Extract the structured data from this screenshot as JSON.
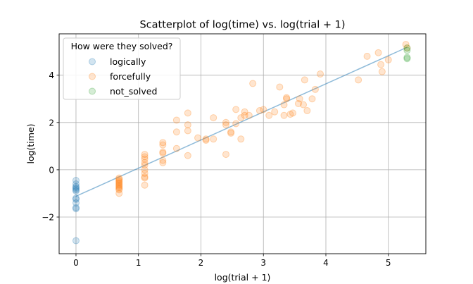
{
  "chart_data": {
    "type": "scatter",
    "title": "Scatterplot of log(time) vs. log(trial + 1)",
    "xlabel": "log(trial + 1)",
    "ylabel": "log(time)",
    "xlim": [
      -0.27,
      5.6
    ],
    "ylim": [
      -3.55,
      5.75
    ],
    "xticks": [
      0,
      1,
      2,
      3,
      4,
      5
    ],
    "yticks": [
      -2,
      0,
      2,
      4
    ],
    "grid": true,
    "legend": {
      "title": "How were they solved?",
      "placement": "top-left"
    },
    "series": [
      {
        "name": "logically",
        "color": "#1f77b4",
        "points": [
          [
            0,
            -0.45
          ],
          [
            0,
            -0.6
          ],
          [
            0,
            -0.7
          ],
          [
            0,
            -0.75
          ],
          [
            0,
            -0.8
          ],
          [
            0,
            -0.85
          ],
          [
            0,
            -0.9
          ],
          [
            0,
            -1.2
          ],
          [
            0,
            -1.25
          ],
          [
            0,
            -1.4
          ],
          [
            0,
            -1.6
          ],
          [
            0,
            -1.65
          ],
          [
            0,
            -3.0
          ]
        ]
      },
      {
        "name": "forcefully",
        "color": "#ff7f0e",
        "points": [
          [
            0.69,
            -0.35
          ],
          [
            0.69,
            -0.4
          ],
          [
            0.69,
            -0.45
          ],
          [
            0.69,
            -0.5
          ],
          [
            0.69,
            -0.55
          ],
          [
            0.69,
            -0.6
          ],
          [
            0.69,
            -0.65
          ],
          [
            0.69,
            -0.7
          ],
          [
            0.69,
            -0.75
          ],
          [
            0.69,
            -0.8
          ],
          [
            0.69,
            -0.85
          ],
          [
            0.69,
            -1.0
          ],
          [
            1.1,
            0.65
          ],
          [
            1.1,
            0.55
          ],
          [
            1.1,
            0.45
          ],
          [
            1.1,
            0.3
          ],
          [
            1.1,
            0.2
          ],
          [
            1.1,
            0.0
          ],
          [
            1.1,
            -0.15
          ],
          [
            1.1,
            -0.3
          ],
          [
            1.1,
            -0.35
          ],
          [
            1.1,
            -0.65
          ],
          [
            1.39,
            1.15
          ],
          [
            1.39,
            1.05
          ],
          [
            1.39,
            0.75
          ],
          [
            1.39,
            0.7
          ],
          [
            1.39,
            0.4
          ],
          [
            1.39,
            0.3
          ],
          [
            1.61,
            2.1
          ],
          [
            1.61,
            1.6
          ],
          [
            1.61,
            0.9
          ],
          [
            1.79,
            2.4
          ],
          [
            1.79,
            1.9
          ],
          [
            1.79,
            1.65
          ],
          [
            1.79,
            0.6
          ],
          [
            1.95,
            1.35
          ],
          [
            2.08,
            1.25
          ],
          [
            2.08,
            1.3
          ],
          [
            2.2,
            2.2
          ],
          [
            2.2,
            1.3
          ],
          [
            2.4,
            2.0
          ],
          [
            2.4,
            1.9
          ],
          [
            2.4,
            0.65
          ],
          [
            2.48,
            1.6
          ],
          [
            2.48,
            1.55
          ],
          [
            2.56,
            2.55
          ],
          [
            2.56,
            1.95
          ],
          [
            2.64,
            2.2
          ],
          [
            2.64,
            1.3
          ],
          [
            2.7,
            2.45
          ],
          [
            2.7,
            2.3
          ],
          [
            2.77,
            2.3
          ],
          [
            2.83,
            3.65
          ],
          [
            2.94,
            2.5
          ],
          [
            3.0,
            2.55
          ],
          [
            3.09,
            2.3
          ],
          [
            3.18,
            2.45
          ],
          [
            3.26,
            3.5
          ],
          [
            3.33,
            2.75
          ],
          [
            3.33,
            2.3
          ],
          [
            3.37,
            3.0
          ],
          [
            3.37,
            3.05
          ],
          [
            3.43,
            2.35
          ],
          [
            3.47,
            2.4
          ],
          [
            3.56,
            2.8
          ],
          [
            3.58,
            3.0
          ],
          [
            3.64,
            2.75
          ],
          [
            3.66,
            3.8
          ],
          [
            3.7,
            2.5
          ],
          [
            3.78,
            3.0
          ],
          [
            3.83,
            3.4
          ],
          [
            3.91,
            4.05
          ],
          [
            4.52,
            3.8
          ],
          [
            4.66,
            4.8
          ],
          [
            4.84,
            4.95
          ],
          [
            4.88,
            4.45
          ],
          [
            4.9,
            4.15
          ],
          [
            5.0,
            4.65
          ],
          [
            5.28,
            5.3
          ],
          [
            5.3,
            5.15
          ]
        ]
      },
      {
        "name": "not_solved",
        "color": "#2ca02c",
        "points": [
          [
            5.3,
            5.15
          ],
          [
            5.3,
            5.05
          ],
          [
            5.3,
            4.75
          ],
          [
            5.3,
            4.7
          ]
        ]
      }
    ],
    "fit_line": {
      "x": [
        0,
        5.3
      ],
      "y": [
        -1.12,
        5.18
      ],
      "color": "#1f77b4"
    }
  }
}
